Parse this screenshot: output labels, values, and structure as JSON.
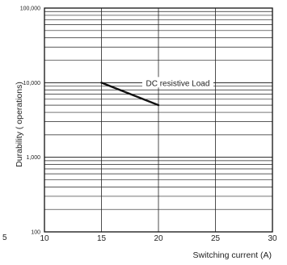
{
  "chart_data": {
    "type": "line",
    "xlabel": "Switching current (A)",
    "ylabel": "Durability ( operations)",
    "x_ticks": [
      10,
      15,
      20,
      25,
      30
    ],
    "x_tick_labels": [
      "10",
      "15",
      "20",
      "25",
      "30"
    ],
    "y_ticks": [
      100,
      1000,
      10000,
      100000
    ],
    "y_tick_labels": [
      "100",
      "1,000",
      "10,000",
      "100,000"
    ],
    "xlim": [
      10,
      30
    ],
    "ylim": [
      100,
      100000
    ],
    "yscale": "log",
    "grid": true,
    "stray_label": "5",
    "series": [
      {
        "name": "DC  resistive Load",
        "x": [
          15,
          20
        ],
        "y": [
          10000,
          5000
        ],
        "color": "#111111"
      }
    ],
    "annotations": [
      {
        "text": "DC  resistive Load",
        "x": 21.7,
        "y": 10000
      }
    ]
  }
}
